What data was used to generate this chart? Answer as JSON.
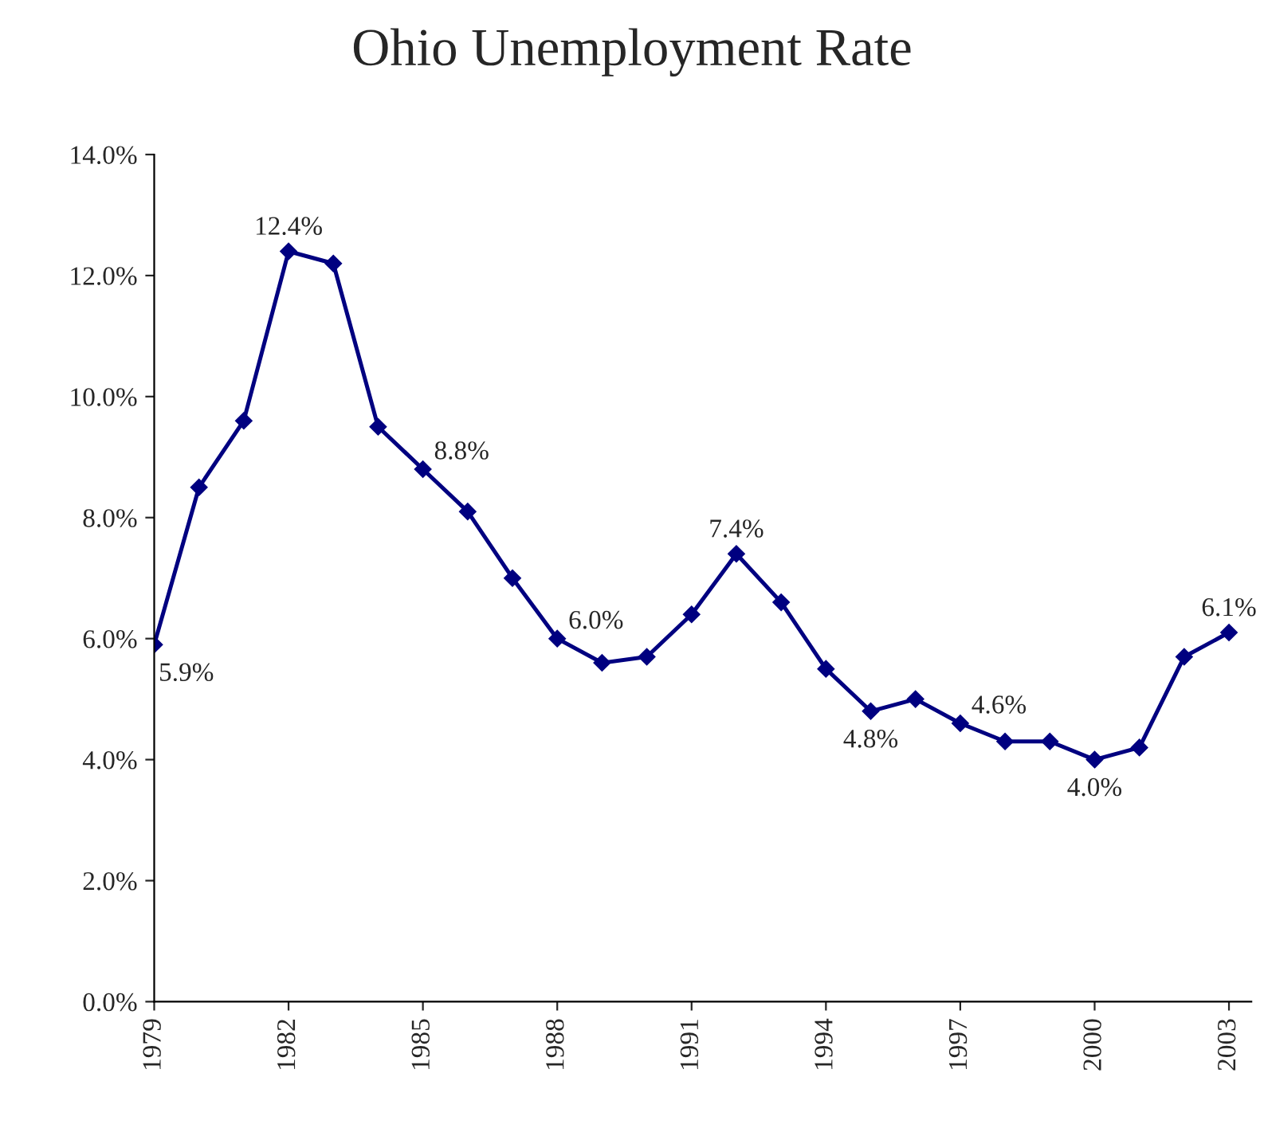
{
  "chart_data": {
    "type": "line",
    "title": "Ohio Unemployment Rate",
    "x": [
      1979,
      1980,
      1981,
      1982,
      1983,
      1984,
      1985,
      1986,
      1987,
      1988,
      1989,
      1990,
      1991,
      1992,
      1993,
      1994,
      1995,
      1996,
      1997,
      1998,
      1999,
      2000,
      2001,
      2002,
      2003
    ],
    "series": [
      {
        "color": "#000080",
        "values": [
          5.9,
          8.5,
          9.6,
          12.4,
          12.2,
          9.5,
          8.8,
          8.1,
          7.0,
          6.0,
          5.6,
          5.7,
          6.4,
          7.4,
          6.6,
          5.5,
          4.8,
          5.0,
          4.6,
          4.3,
          4.3,
          4.0,
          4.2,
          5.7,
          6.1
        ],
        "value_labels": [
          "5.9%",
          null,
          null,
          "12.4%",
          null,
          null,
          "8.8%",
          null,
          null,
          "6.0%",
          null,
          null,
          null,
          "7.4%",
          null,
          null,
          "4.8%",
          null,
          "4.6%",
          null,
          null,
          "4.0%",
          null,
          null,
          "6.1%"
        ]
      }
    ],
    "xlim": [
      1979,
      2003.5
    ],
    "xticks": [
      1979,
      1982,
      1985,
      1988,
      1991,
      1994,
      1997,
      2000,
      2003
    ],
    "ylim": [
      0,
      14
    ],
    "yticks": [
      {
        "value": 0,
        "label": "0.0%"
      },
      {
        "value": 2,
        "label": "2.0%"
      },
      {
        "value": 4,
        "label": "4.0%"
      },
      {
        "value": 6,
        "label": "6.0%"
      },
      {
        "value": 8,
        "label": "8.0%"
      },
      {
        "value": 10,
        "label": "10.0%"
      },
      {
        "value": 12,
        "label": "12.0%"
      },
      {
        "value": 14,
        "label": "14.0%"
      }
    ],
    "marker": "diamond",
    "line_style": "solid",
    "grid": false,
    "legend": false
  }
}
